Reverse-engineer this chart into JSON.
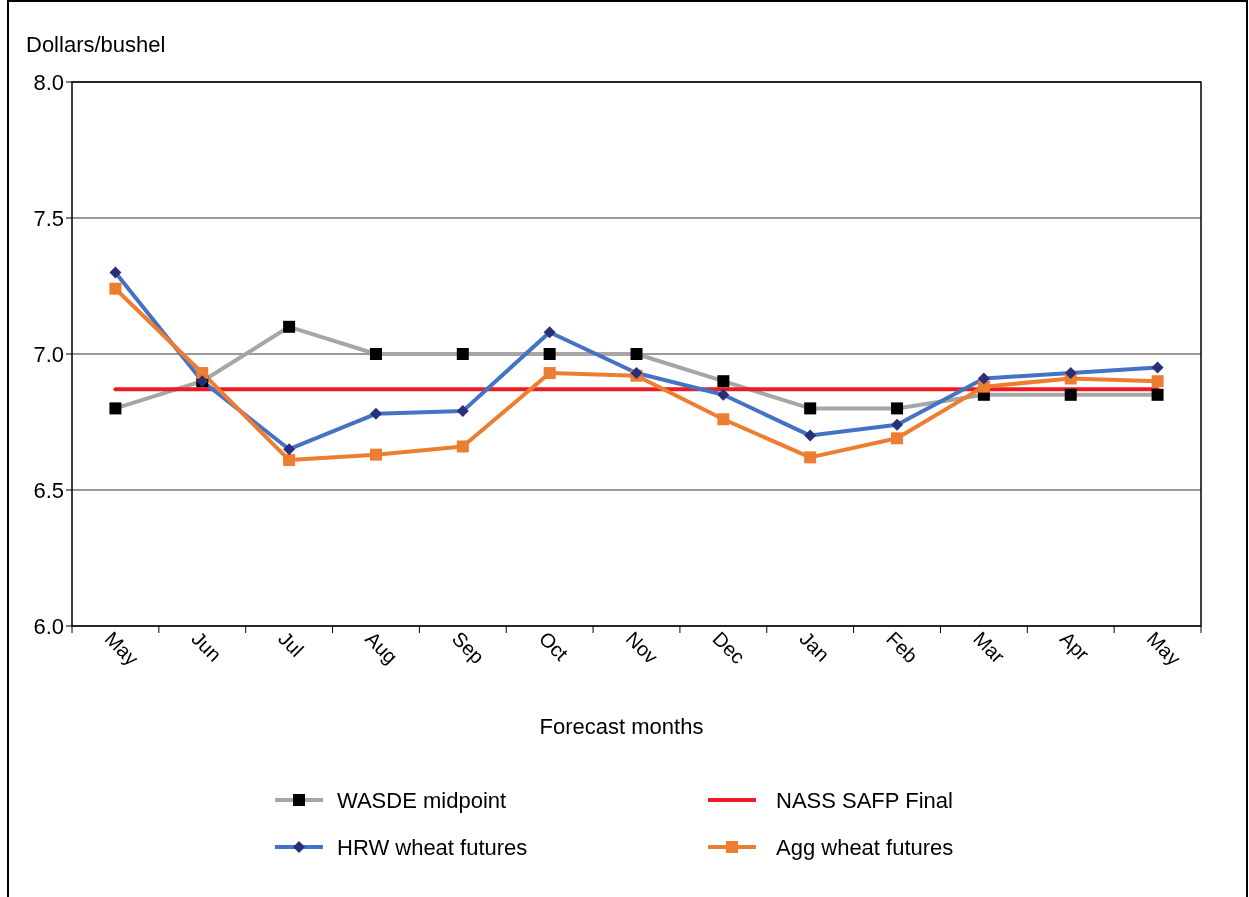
{
  "chart_data": {
    "type": "line",
    "ylabel": "Dollars/bushel",
    "xlabel": "Forecast months",
    "categories": [
      "May",
      "Jun",
      "Jul",
      "Aug",
      "Sep",
      "Oct",
      "Nov",
      "Dec",
      "Jan",
      "Feb",
      "Mar",
      "Apr",
      "May"
    ],
    "ylim": [
      6.0,
      8.0
    ],
    "yticks": [
      {
        "value": 6.0,
        "label": "6.0"
      },
      {
        "value": 6.5,
        "label": "6.5"
      },
      {
        "value": 7.0,
        "label": "7.0"
      },
      {
        "value": 7.5,
        "label": "7.5"
      },
      {
        "value": 8.0,
        "label": "8.0"
      }
    ],
    "grid": "y",
    "legend": "bottom",
    "series": [
      {
        "name": "WASDE midpoint",
        "color": "#a6a6a6",
        "marker": "square",
        "values": [
          6.8,
          6.9,
          7.1,
          7.0,
          7.0,
          7.0,
          7.0,
          6.9,
          6.8,
          6.8,
          6.85,
          6.85,
          6.85
        ]
      },
      {
        "name": "NASS SAFP Final",
        "color": "#ed1c24",
        "marker": "none",
        "values": [
          6.87,
          6.87,
          6.87,
          6.87,
          6.87,
          6.87,
          6.87,
          6.87,
          6.87,
          6.87,
          6.87,
          6.87,
          6.87
        ]
      },
      {
        "name": "HRW wheat futures",
        "color": "#4472c4",
        "marker": "diamond",
        "values": [
          7.3,
          6.9,
          6.65,
          6.78,
          6.79,
          7.08,
          6.93,
          6.85,
          6.7,
          6.74,
          6.91,
          6.93,
          6.95
        ]
      },
      {
        "name": "Agg wheat futures",
        "color": "#ed7d31",
        "marker": "square",
        "values": [
          7.24,
          6.93,
          6.61,
          6.63,
          6.66,
          6.93,
          6.92,
          6.76,
          6.62,
          6.69,
          6.88,
          6.91,
          6.9
        ]
      }
    ]
  }
}
